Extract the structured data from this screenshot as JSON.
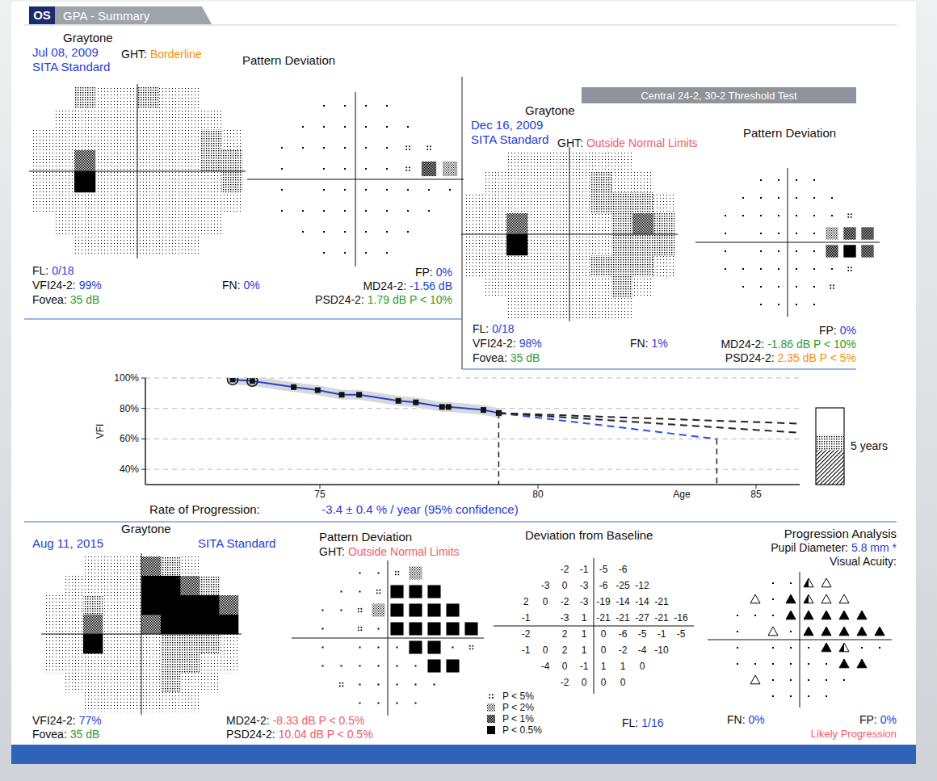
{
  "header": {
    "eye": "OS",
    "title": "GPA - Summary",
    "test": "Central 24-2, 30-2 Threshold Test"
  },
  "symbol_legend": {
    "levels": [
      {
        "level": 1,
        "label": "P < 5%"
      },
      {
        "level": 2,
        "label": "P < 2%"
      },
      {
        "level": 3,
        "label": "P < 1%"
      },
      {
        "level": 4,
        "label": "P < 0.5%"
      }
    ]
  },
  "exams": [
    {
      "graytone_label": "Graytone",
      "date": "Jul 08, 2009",
      "strategy": "SITA Standard",
      "ght": {
        "label": "GHT:",
        "value": "Borderline",
        "color": "#f0900a"
      },
      "pattern_deviation_label": "Pattern Deviation",
      "graytone": [
        [
          null,
          null,
          2,
          1,
          1,
          2,
          1,
          1,
          null,
          null
        ],
        [
          null,
          1,
          1,
          1,
          1,
          1,
          1,
          1,
          1,
          null
        ],
        [
          1,
          1,
          1,
          1,
          1,
          1,
          1,
          1,
          2,
          1
        ],
        [
          1,
          1,
          3,
          1,
          1,
          1,
          1,
          1,
          2,
          2
        ],
        [
          1,
          1,
          4,
          1,
          1,
          1,
          1,
          1,
          1,
          2
        ],
        [
          1,
          1,
          1,
          1,
          1,
          1,
          1,
          1,
          1,
          1
        ],
        [
          null,
          1,
          1,
          1,
          1,
          1,
          1,
          1,
          1,
          null
        ],
        [
          null,
          null,
          1,
          1,
          1,
          1,
          1,
          1,
          null,
          null
        ]
      ],
      "pattern_deviation": [
        [
          null,
          null,
          null,
          0,
          0,
          0,
          0,
          null,
          null,
          null
        ],
        [
          null,
          null,
          0,
          0,
          0,
          0,
          0,
          0,
          null,
          null
        ],
        [
          null,
          0,
          0,
          0,
          0,
          0,
          0,
          1,
          1,
          null
        ],
        [
          null,
          0,
          null,
          0,
          0,
          0,
          0,
          1,
          3,
          2
        ],
        [
          null,
          0,
          null,
          0,
          0,
          0,
          0,
          0,
          0,
          0
        ],
        [
          null,
          0,
          0,
          0,
          0,
          0,
          0,
          0,
          0,
          null
        ],
        [
          null,
          null,
          0,
          0,
          0,
          0,
          0,
          0,
          null,
          null
        ],
        [
          null,
          null,
          null,
          0,
          0,
          0,
          0,
          null,
          null,
          null
        ]
      ],
      "stats": {
        "fl": {
          "label": "FL:",
          "value": "0/18",
          "color": "#2540d9"
        },
        "vfi": {
          "label": "VFI24-2:",
          "value": "99%",
          "color": "#2540d9"
        },
        "fovea": {
          "label": "Fovea:",
          "value": "35 dB",
          "color": "#2e9b2e"
        },
        "fn": {
          "label": "FN:",
          "value": "0%",
          "color": "#2540d9"
        },
        "fp": {
          "label": "FP:",
          "value": "0%",
          "color": "#2540d9"
        },
        "md": {
          "label": "MD24-2:",
          "value": "-1.56 dB",
          "color": "#2540d9"
        },
        "psd": {
          "label": "PSD24-2:",
          "value": "1.79 dB P < 10%",
          "color": "#2e9b2e"
        }
      }
    },
    {
      "graytone_label": "Graytone",
      "date": "Dec 16, 2009",
      "strategy": "SITA Standard",
      "ght": {
        "label": "GHT:",
        "value": "Outside Normal Limits",
        "color": "#f25c6a"
      },
      "pattern_deviation_label": "Pattern Deviation",
      "graytone": [
        [
          null,
          null,
          1,
          1,
          1,
          1,
          1,
          1,
          null,
          null
        ],
        [
          null,
          1,
          1,
          1,
          1,
          1,
          2,
          1,
          1,
          null
        ],
        [
          1,
          1,
          1,
          1,
          1,
          1,
          2,
          2,
          2,
          1
        ],
        [
          1,
          1,
          3,
          1,
          1,
          1,
          1,
          2,
          3,
          2
        ],
        [
          1,
          1,
          4,
          1,
          1,
          1,
          1,
          2,
          2,
          2
        ],
        [
          1,
          1,
          1,
          1,
          1,
          1,
          2,
          2,
          2,
          1
        ],
        [
          null,
          1,
          1,
          1,
          1,
          1,
          1,
          2,
          1,
          null
        ],
        [
          null,
          null,
          1,
          1,
          1,
          1,
          1,
          1,
          null,
          null
        ]
      ],
      "pattern_deviation": [
        [
          null,
          null,
          null,
          0,
          0,
          0,
          0,
          null,
          null,
          null
        ],
        [
          null,
          null,
          0,
          0,
          0,
          0,
          0,
          0,
          null,
          null
        ],
        [
          null,
          0,
          0,
          0,
          0,
          0,
          0,
          0,
          1,
          null
        ],
        [
          null,
          0,
          null,
          0,
          0,
          0,
          0,
          2,
          3,
          3
        ],
        [
          null,
          0,
          null,
          0,
          0,
          0,
          0,
          3,
          4,
          3
        ],
        [
          null,
          0,
          0,
          0,
          0,
          0,
          0,
          0,
          1,
          null
        ],
        [
          null,
          null,
          0,
          0,
          0,
          0,
          0,
          1,
          null,
          null
        ],
        [
          null,
          null,
          null,
          0,
          0,
          0,
          0,
          null,
          null,
          null
        ]
      ],
      "stats": {
        "fl": {
          "label": "FL:",
          "value": "0/18",
          "color": "#2540d9"
        },
        "vfi": {
          "label": "VFI24-2:",
          "value": "98%",
          "color": "#2540d9"
        },
        "fovea": {
          "label": "Fovea:",
          "value": "35 dB",
          "color": "#2e9b2e"
        },
        "fn": {
          "label": "FN:",
          "value": "1%",
          "color": "#2540d9"
        },
        "fp": {
          "label": "FP:",
          "value": "0%",
          "color": "#2540d9"
        },
        "md": {
          "label": "MD24-2:",
          "value": "-1.86 dB P < 10%",
          "color": "#2e9b2e"
        },
        "psd": {
          "label": "PSD24-2:",
          "value": "2.35 dB P < 5%",
          "color": "#f0900a"
        }
      }
    },
    {
      "graytone_label": "Graytone",
      "date": "Aug 11, 2015",
      "strategy": "SITA Standard",
      "ght": {
        "label": "GHT:",
        "value": "Outside Normal Limits",
        "color": "#f25c6a"
      },
      "pattern_deviation_label": "Pattern Deviation",
      "graytone": [
        [
          null,
          null,
          1,
          1,
          1,
          3,
          2,
          1,
          null,
          null
        ],
        [
          null,
          1,
          1,
          1,
          1,
          4,
          4,
          3,
          2,
          null
        ],
        [
          1,
          1,
          2,
          1,
          1,
          4,
          4,
          4,
          4,
          3
        ],
        [
          1,
          1,
          3,
          1,
          1,
          3,
          4,
          4,
          4,
          4
        ],
        [
          1,
          1,
          4,
          1,
          1,
          1,
          2,
          2,
          2,
          1
        ],
        [
          1,
          1,
          1,
          1,
          1,
          1,
          2,
          2,
          1,
          1
        ],
        [
          null,
          1,
          1,
          1,
          1,
          1,
          2,
          1,
          1,
          null
        ],
        [
          null,
          null,
          1,
          1,
          1,
          1,
          1,
          1,
          null,
          null
        ]
      ],
      "pattern_deviation": [
        [
          null,
          null,
          null,
          0,
          0,
          1,
          2,
          null,
          null,
          null
        ],
        [
          null,
          null,
          0,
          0,
          1,
          4,
          4,
          4,
          null,
          null
        ],
        [
          null,
          0,
          0,
          1,
          2,
          4,
          4,
          4,
          4,
          null
        ],
        [
          null,
          0,
          null,
          1,
          0,
          4,
          4,
          4,
          4,
          4
        ],
        [
          null,
          0,
          null,
          0,
          0,
          0,
          4,
          4,
          0,
          1
        ],
        [
          null,
          0,
          0,
          0,
          0,
          0,
          0,
          4,
          4,
          null
        ],
        [
          null,
          null,
          1,
          0,
          0,
          0,
          0,
          0,
          null,
          null
        ],
        [
          null,
          null,
          null,
          0,
          0,
          0,
          0,
          null,
          null,
          null
        ]
      ],
      "deviation_from_baseline": {
        "label": "Deviation from Baseline",
        "rows": [
          [
            null,
            null,
            null,
            -2,
            -1,
            -5,
            -6,
            null,
            null,
            null
          ],
          [
            null,
            null,
            -3,
            0,
            -3,
            -6,
            -25,
            -12,
            null,
            null
          ],
          [
            null,
            2,
            0,
            -2,
            -3,
            -19,
            -14,
            -14,
            -21,
            null
          ],
          [
            null,
            -1,
            null,
            -3,
            1,
            -21,
            -21,
            -27,
            -21,
            -16
          ],
          [
            null,
            -2,
            null,
            2,
            1,
            0,
            -6,
            -5,
            -1,
            -5
          ],
          [
            null,
            -1,
            0,
            2,
            1,
            0,
            -2,
            -4,
            -10,
            null
          ],
          [
            null,
            null,
            -4,
            0,
            -1,
            1,
            1,
            0,
            null,
            null
          ],
          [
            null,
            null,
            null,
            -2,
            0,
            0,
            0,
            null,
            null,
            null
          ]
        ]
      },
      "progression_analysis": {
        "label": "Progression Analysis",
        "pupil": {
          "label": "Pupil Diameter:",
          "value": "5.8 mm *",
          "color": "#2540d9"
        },
        "visual_acuity": "Visual Acuity:",
        "rows": [
          [
            null,
            null,
            null,
            0,
            0,
            2,
            1,
            null,
            null,
            null
          ],
          [
            null,
            null,
            1,
            0,
            3,
            2,
            1,
            1,
            null,
            null
          ],
          [
            null,
            0,
            0,
            0,
            3,
            3,
            3,
            3,
            3,
            null
          ],
          [
            null,
            0,
            null,
            1,
            0,
            3,
            3,
            3,
            3,
            3
          ],
          [
            null,
            0,
            null,
            0,
            0,
            0,
            3,
            2,
            0,
            0
          ],
          [
            null,
            0,
            0,
            0,
            0,
            0,
            0,
            3,
            3,
            null
          ],
          [
            null,
            null,
            1,
            0,
            0,
            0,
            0,
            0,
            null,
            null
          ],
          [
            null,
            null,
            null,
            0,
            0,
            0,
            0,
            null,
            null,
            null
          ]
        ],
        "verdict": {
          "value": "Likely Progression",
          "color": "#f25c6a"
        }
      },
      "stats": {
        "fl": {
          "label": "FL:",
          "value": "1/16",
          "color": "#2540d9"
        },
        "vfi": {
          "label": "VFI24-2:",
          "value": "77%",
          "color": "#2540d9"
        },
        "fovea": {
          "label": "Fovea:",
          "value": "35 dB",
          "color": "#2e9b2e"
        },
        "fn": {
          "label": "FN:",
          "value": "0%",
          "color": "#2540d9"
        },
        "fp": {
          "label": "FP:",
          "value": "0%",
          "color": "#2540d9"
        },
        "md": {
          "label": "MD24-2:",
          "value": "-8.33 dB P < 0.5%",
          "color": "#f25c6a"
        },
        "psd": {
          "label": "PSD24-2:",
          "value": "10.04 dB P < 0.5%",
          "color": "#f25c6a"
        }
      }
    }
  ],
  "chart_data": {
    "type": "line",
    "title": "Rate of Progression:",
    "subtitle": "-3.4 ± 0.4 % / year (95% confidence)",
    "x_label": "Age",
    "y_label": "VFI",
    "xlim": [
      71,
      86
    ],
    "xticks": [
      75,
      80,
      85
    ],
    "ylim": [
      30,
      100
    ],
    "yticks": [
      {
        "value": 40,
        "label": "40%"
      },
      {
        "value": 60,
        "label": "60%"
      },
      {
        "value": 80,
        "label": "80%"
      },
      {
        "value": 100,
        "label": "100%"
      }
    ],
    "grid": true,
    "series": [
      {
        "x": [
          73.0,
          73.45,
          74.4,
          74.95,
          75.5,
          75.9,
          76.8,
          77.2,
          77.8,
          77.95,
          78.75,
          79.1
        ],
        "values": [
          99,
          98,
          94,
          92,
          89,
          89,
          85,
          84,
          81,
          81,
          79,
          77
        ],
        "color": "#2540d9",
        "marker": "square",
        "line_style": "solid"
      },
      {
        "type": "scatter",
        "x": [
          73.0,
          73.45
        ],
        "values": [
          99,
          98
        ],
        "color": "#111111",
        "marker": "circle"
      },
      {
        "x": [
          79.1,
          84.1
        ],
        "values": [
          77,
          60
        ],
        "color": "#2d52e0",
        "line_style": "dashed"
      },
      {
        "x": [
          79.1,
          86
        ],
        "values": [
          77,
          70
        ],
        "color": "#222222",
        "line_style": "dashed"
      },
      {
        "x": [
          79.1,
          86
        ],
        "values": [
          77,
          64
        ],
        "color": "#222222",
        "line_style": "dashed"
      }
    ],
    "drop_lines": [
      79.1,
      84.1
    ],
    "annotation": "5 years"
  }
}
